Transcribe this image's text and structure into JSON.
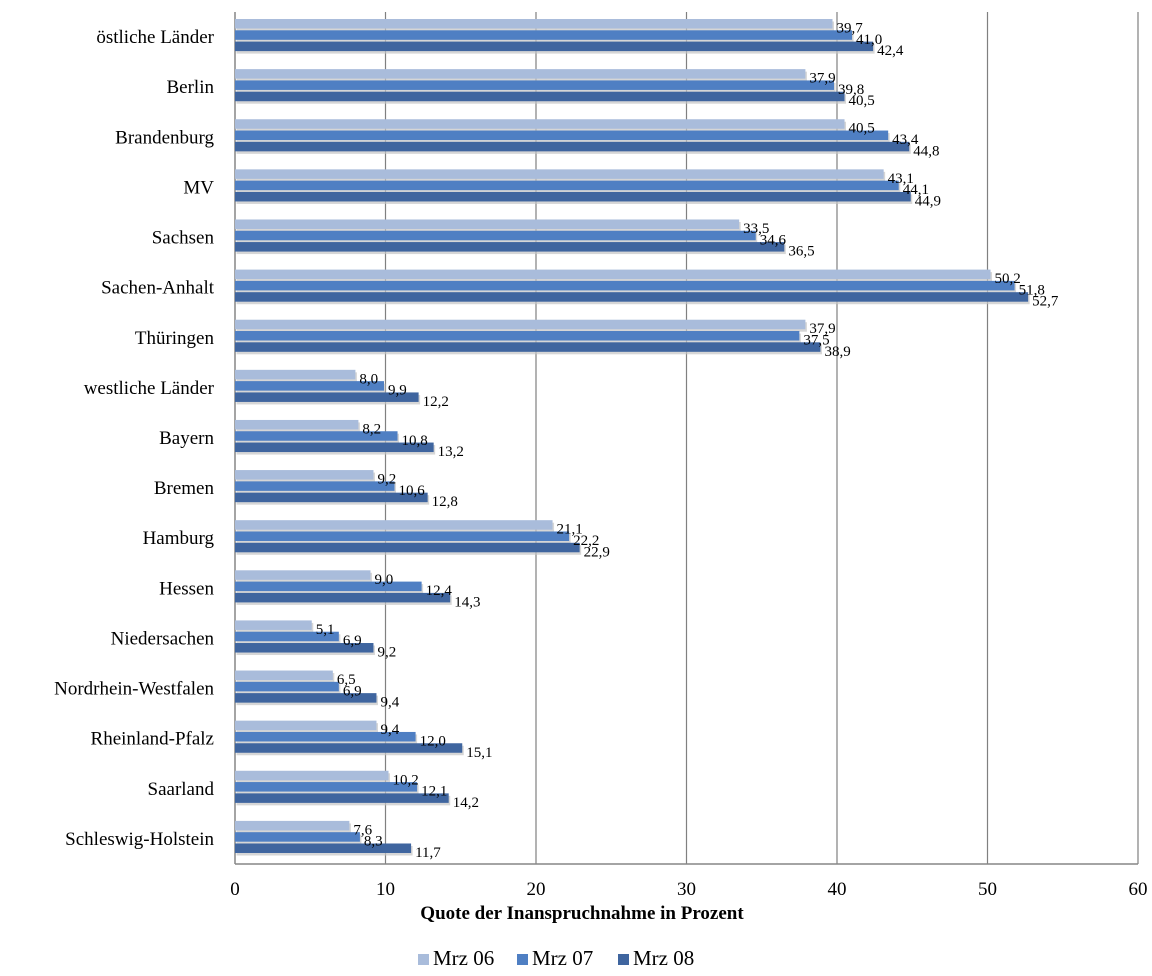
{
  "chart_data": {
    "type": "bar",
    "orientation": "horizontal",
    "categories": [
      "östliche Länder",
      "Berlin",
      "Brandenburg",
      "MV",
      "Sachsen",
      "Sachen-Anhalt",
      "Thüringen",
      "westliche Länder",
      "Bayern",
      "Bremen",
      "Hamburg",
      "Hessen",
      "Niedersachen",
      "Nordrhein-Westfalen",
      "Rheinland-Pfalz",
      "Saarland",
      "Schleswig-Holstein"
    ],
    "series": [
      {
        "name": "Mrz 06",
        "color": "#A9BCDB",
        "values": [
          39.7,
          37.9,
          40.5,
          43.1,
          33.5,
          50.2,
          37.9,
          8.0,
          8.2,
          9.2,
          21.1,
          9.0,
          5.1,
          6.5,
          9.4,
          10.2,
          7.6
        ],
        "labels": [
          "39,7",
          "37,9",
          "40,5",
          "43,1",
          "33,5",
          "50,2",
          "37,9",
          "8,0",
          "8,2",
          "9,2",
          "21,1",
          "9,0",
          "5,1",
          "6,5",
          "9,4",
          "10,2",
          "7,6"
        ]
      },
      {
        "name": "Mrz 07",
        "color": "#4F7FC3",
        "values": [
          41.0,
          39.8,
          43.4,
          44.1,
          34.6,
          51.8,
          37.5,
          9.9,
          10.8,
          10.6,
          22.2,
          12.4,
          6.9,
          6.9,
          12.0,
          12.1,
          8.3
        ],
        "labels": [
          "41,0",
          "39,8",
          "43,4",
          "44,1",
          "34,6",
          "51,8",
          "37,5",
          "9,9",
          "10,8",
          "10,6",
          "22,2",
          "12,4",
          "6,9",
          "6,9",
          "12,0",
          "12,1",
          "8,3"
        ]
      },
      {
        "name": "Mrz 08",
        "color": "#3F659F",
        "values": [
          42.4,
          40.5,
          44.8,
          44.9,
          36.5,
          52.7,
          38.9,
          12.2,
          13.2,
          12.8,
          22.9,
          14.3,
          9.2,
          9.4,
          15.1,
          14.2,
          11.7
        ],
        "labels": [
          "42,4",
          "40,5",
          "44,8",
          "44,9",
          "36,5",
          "52,7",
          "38,9",
          "12,2",
          "13,2",
          "12,8",
          "22,9",
          "14,3",
          "9,2",
          "9,4",
          "15,1",
          "14,2",
          "11,7"
        ]
      }
    ],
    "xlabel": "Quote der Inanspruchnahme in Prozent",
    "xlim": [
      0,
      60
    ],
    "xticks": [
      0,
      10,
      20,
      30,
      40,
      50,
      60
    ],
    "grid": true,
    "legend_position": "bottom"
  }
}
